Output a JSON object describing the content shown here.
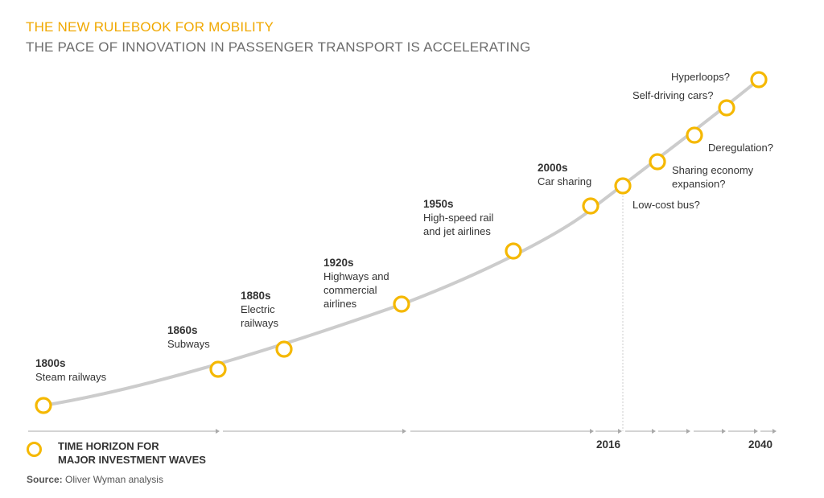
{
  "title": "THE NEW RULEBOOK FOR MOBILITY",
  "subtitle": "THE PACE OF INNOVATION IN PASSENGER TRANSPORT IS ACCELERATING",
  "colors": {
    "accent": "#f5b800",
    "title": "#f0a800",
    "curve": "#cccccc",
    "axis": "#aaaaaa"
  },
  "milestones": [
    {
      "year": "1800s",
      "text": "Steam railways"
    },
    {
      "year": "1860s",
      "text": "Subways"
    },
    {
      "year": "1880s",
      "text": "Electric\nrailways"
    },
    {
      "year": "1920s",
      "text": "Highways and\ncommercial\nairlines"
    },
    {
      "year": "1950s",
      "text": "High-speed rail\nand jet airlines"
    },
    {
      "year": "2000s",
      "text": "Car sharing"
    },
    {
      "year": "",
      "text": "Low-cost bus?"
    },
    {
      "year": "",
      "text": "Sharing economy\nexpansion?"
    },
    {
      "year": "",
      "text": "Deregulation?"
    },
    {
      "year": "",
      "text": "Self-driving cars?"
    },
    {
      "year": "",
      "text": "Hyperloops?"
    }
  ],
  "axis": {
    "year_2016": "2016",
    "year_2040": "2040"
  },
  "legend": {
    "icon": "ring-icon",
    "label": "TIME HORIZON FOR\nMAJOR INVESTMENT WAVES"
  },
  "source": {
    "prefix": "Source:",
    "text": " Oliver Wyman analysis"
  }
}
